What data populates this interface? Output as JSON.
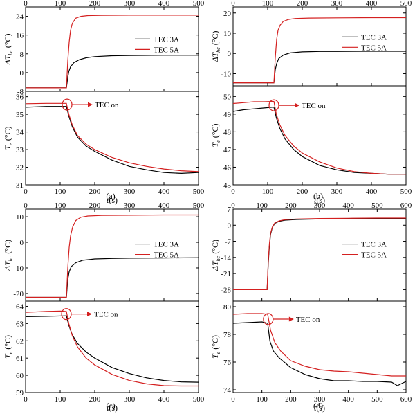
{
  "chart_data": [
    {
      "type": "line",
      "caption": "(a)",
      "x_range": [
        0,
        500
      ],
      "top": {
        "ylabel": "ΔT_hc (°C)",
        "ylim": [
          -8,
          28
        ],
        "yticks": [
          -8,
          0,
          8,
          16,
          24
        ],
        "ytick_labels": [
          "-8",
          "0",
          "8",
          "16",
          "24"
        ],
        "legend_loc": "right",
        "series": [
          {
            "name": "TEC 3A",
            "color": "#000000",
            "x": [
              0,
              118,
              122,
              125,
              130,
              140,
              155,
              175,
              200,
              250,
              300,
              400,
              500
            ],
            "y": [
              -6.5,
              -6.5,
              -2,
              0.5,
              2.5,
              4.3,
              5.5,
              6.3,
              6.8,
              7.2,
              7.3,
              7.4,
              7.4
            ]
          },
          {
            "name": "TEC 5A",
            "color": "#d42020",
            "x": [
              0,
              118,
              122,
              126,
              130,
              135,
              145,
              160,
              180,
              220,
              300,
              400,
              500
            ],
            "y": [
              -6.5,
              -6.5,
              5,
              13,
              18,
              21,
              23.2,
              24,
              24.3,
              24.4,
              24.5,
              24.5,
              24.5
            ]
          }
        ]
      },
      "bottom": {
        "ylabel": "T_e (°C)",
        "ylim": [
          31,
          36.3
        ],
        "yticks": [
          31,
          32,
          33,
          34,
          35,
          36
        ],
        "ytick_labels": [
          "31",
          "32",
          "33",
          "34",
          "35",
          "36"
        ],
        "xlabel": "t(s)",
        "xticks": [
          0,
          100,
          200,
          300,
          400,
          500
        ],
        "xtick_labels": [
          "0",
          "100",
          "200",
          "300",
          "400",
          "500"
        ],
        "annotation": {
          "text": "TEC on",
          "x": 120,
          "y": 35.55
        },
        "series": [
          {
            "name": "TEC 3A",
            "color": "#000000",
            "x": [
              0,
              60,
              118,
              125,
              135,
              150,
              175,
              200,
              250,
              300,
              350,
              400,
              450,
              500
            ],
            "y": [
              35.4,
              35.45,
              35.45,
              34.9,
              34.3,
              33.7,
              33.2,
              32.9,
              32.4,
              32.05,
              31.85,
              31.7,
              31.65,
              31.7
            ]
          },
          {
            "name": "TEC 5A",
            "color": "#d42020",
            "x": [
              0,
              60,
              118,
              125,
              135,
              150,
              175,
              200,
              250,
              300,
              350,
              400,
              450,
              500
            ],
            "y": [
              35.6,
              35.62,
              35.62,
              35.0,
              34.4,
              33.8,
              33.3,
              33.0,
              32.55,
              32.25,
              32.05,
              31.9,
              31.8,
              31.75
            ]
          }
        ]
      }
    },
    {
      "type": "line",
      "caption": "(b)",
      "x_range": [
        0,
        500
      ],
      "top": {
        "ylabel": "ΔT_hc (°C)",
        "ylim": [
          -16,
          23
        ],
        "yticks": [
          -10,
          0,
          10,
          20
        ],
        "ytick_labels": [
          "-10",
          "0",
          "10",
          "20"
        ],
        "legend_loc": "right",
        "series": [
          {
            "name": "TEC 3A",
            "color": "#000000",
            "x": [
              0,
              118,
              122,
              126,
              132,
              145,
              165,
              200,
              250,
              300,
              400,
              500
            ],
            "y": [
              -14.5,
              -14.5,
              -8,
              -5,
              -2.5,
              -0.8,
              0.3,
              0.8,
              1.0,
              1.0,
              1.1,
              1.1
            ]
          },
          {
            "name": "TEC 5A",
            "color": "#d42020",
            "x": [
              0,
              118,
              122,
              126,
              130,
              136,
              145,
              160,
              180,
              220,
              300,
              400,
              500
            ],
            "y": [
              -14.5,
              -14.5,
              -2,
              7,
              11.5,
              14,
              15.8,
              16.8,
              17.3,
              17.5,
              17.6,
              17.7,
              17.7
            ]
          }
        ]
      },
      "bottom": {
        "ylabel": "T_e (°C)",
        "ylim": [
          45,
          50.6
        ],
        "yticks": [
          45,
          46,
          47,
          48,
          49,
          50
        ],
        "ytick_labels": [
          "45",
          "46",
          "47",
          "48",
          "49",
          "50"
        ],
        "xlabel": "t(s)",
        "xticks": [
          0,
          100,
          200,
          300,
          400,
          500
        ],
        "xtick_labels": [
          "0",
          "100",
          "200",
          "300",
          "400",
          "500"
        ],
        "annotation": {
          "text": "TEC on",
          "x": 118,
          "y": 49.5
        },
        "series": [
          {
            "name": "TEC 3A",
            "color": "#000000",
            "x": [
              0,
              30,
              60,
              90,
              118,
              125,
              135,
              150,
              175,
              200,
              250,
              300,
              350,
              400,
              450,
              500
            ],
            "y": [
              49.15,
              49.25,
              49.3,
              49.35,
              49.4,
              48.8,
              48.2,
              47.6,
              47.0,
              46.6,
              46.1,
              45.85,
              45.7,
              45.65,
              45.6,
              45.6
            ]
          },
          {
            "name": "TEC 5A",
            "color": "#d42020",
            "x": [
              0,
              30,
              60,
              90,
              118,
              125,
              135,
              150,
              175,
              200,
              250,
              300,
              350,
              400,
              450,
              500
            ],
            "y": [
              49.6,
              49.65,
              49.7,
              49.7,
              49.72,
              49.0,
              48.4,
              47.8,
              47.2,
              46.8,
              46.3,
              45.95,
              45.75,
              45.65,
              45.6,
              45.6
            ]
          }
        ]
      }
    },
    {
      "type": "line",
      "caption": "(c)",
      "x_range": [
        0,
        500
      ],
      "top": {
        "ylabel": "ΔT_hc (°C)",
        "ylim": [
          -23,
          13
        ],
        "yticks": [
          -20,
          -10,
          0,
          10
        ],
        "ytick_labels": [
          "-20",
          "-10",
          "0",
          "10"
        ],
        "legend_loc": "right",
        "series": [
          {
            "name": "TEC 3A",
            "color": "#000000",
            "x": [
              0,
              118,
              122,
              126,
              132,
              145,
              165,
              200,
              250,
              300,
              400,
              500
            ],
            "y": [
              -21.5,
              -21.5,
              -14.5,
              -11.5,
              -9.5,
              -8,
              -7,
              -6.5,
              -6.3,
              -6.2,
              -6.1,
              -6.0
            ]
          },
          {
            "name": "TEC 5A",
            "color": "#d42020",
            "x": [
              0,
              118,
              122,
              126,
              130,
              136,
              145,
              160,
              180,
              220,
              300,
              400,
              500
            ],
            "y": [
              -21.5,
              -21.5,
              -10,
              -2,
              2.5,
              6,
              8.5,
              9.8,
              10.3,
              10.5,
              10.6,
              10.7,
              10.7
            ]
          }
        ]
      },
      "bottom": {
        "ylabel": "T_e (°C)",
        "ylim": [
          59,
          64.3
        ],
        "yticks": [
          59,
          60,
          61,
          62,
          63,
          64
        ],
        "ytick_labels": [
          "59",
          "60",
          "61",
          "62",
          "63",
          "64"
        ],
        "xlabel": "t(s)",
        "xticks": [
          0,
          100,
          200,
          300,
          400,
          500
        ],
        "xtick_labels": [
          "0",
          "100",
          "200",
          "300",
          "400",
          "500"
        ],
        "annotation": {
          "text": "TEC on",
          "x": 118,
          "y": 63.55
        },
        "series": [
          {
            "name": "TEC 3A",
            "color": "#000000",
            "x": [
              0,
              60,
              118,
              125,
              135,
              150,
              175,
              200,
              250,
              300,
              350,
              400,
              450,
              500
            ],
            "y": [
              63.4,
              63.42,
              63.45,
              62.9,
              62.35,
              61.85,
              61.35,
              61.0,
              60.45,
              60.1,
              59.85,
              59.7,
              59.62,
              59.6
            ]
          },
          {
            "name": "TEC 5A",
            "color": "#d42020",
            "x": [
              0,
              60,
              100,
              118,
              125,
              135,
              150,
              175,
              200,
              250,
              300,
              350,
              400,
              450,
              500
            ],
            "y": [
              63.65,
              63.7,
              63.72,
              63.7,
              63.0,
              62.3,
              61.65,
              61.0,
              60.6,
              60.05,
              59.7,
              59.5,
              59.4,
              59.38,
              59.38
            ]
          }
        ]
      }
    },
    {
      "type": "line",
      "caption": "(d)",
      "x_range": [
        0,
        600
      ],
      "top": {
        "ylabel": "ΔT_hc (°C)",
        "ylim": [
          -33,
          7
        ],
        "yticks": [
          -28,
          -21,
          -14,
          -7,
          0,
          7
        ],
        "ytick_labels": [
          "-28",
          "-21",
          "-14",
          "-7",
          "0",
          "7"
        ],
        "legend_loc": "right",
        "series": [
          {
            "name": "TEC 3A",
            "color": "#000000",
            "x": [
              0,
              118,
              122,
              126,
              130,
              136,
              145,
              160,
              180,
              220,
              300,
              400,
              500,
              600
            ],
            "y": [
              -28,
              -28,
              -17,
              -9,
              -4,
              -1,
              0.8,
              1.7,
              2.2,
              2.5,
              2.7,
              2.8,
              2.9,
              2.9
            ]
          },
          {
            "name": "TEC 5A",
            "color": "#d42020",
            "x": [
              0,
              118,
              122,
              126,
              130,
              136,
              145,
              160,
              180,
              220,
              300,
              400,
              500,
              600
            ],
            "y": [
              -28,
              -28,
              -16,
              -8,
              -3.5,
              -0.8,
              1.0,
              1.9,
              2.4,
              2.7,
              2.9,
              3.0,
              3.1,
              3.1
            ]
          }
        ]
      },
      "bottom": {
        "ylabel": "T_e (°C)",
        "ylim": [
          73.8,
          80.4
        ],
        "yticks": [
          74,
          76,
          78,
          80
        ],
        "ytick_labels": [
          "74",
          "76",
          "78",
          "80"
        ],
        "xlabel": "t(s)",
        "xticks": [
          0,
          100,
          200,
          300,
          400,
          500,
          600
        ],
        "xtick_labels": [
          "0",
          "100",
          "200",
          "300",
          "400",
          "500",
          "600"
        ],
        "annotation": {
          "text": "TEC on",
          "x": 122,
          "y": 79.1
        },
        "series": [
          {
            "name": "TEC 3A",
            "color": "#000000",
            "x": [
              0,
              50,
              100,
              120,
              128,
              140,
              160,
              200,
              250,
              300,
              350,
              400,
              450,
              500,
              550,
              570,
              600
            ],
            "y": [
              78.8,
              78.85,
              78.9,
              78.8,
              77.5,
              76.8,
              76.3,
              75.6,
              75.1,
              74.8,
              74.65,
              74.65,
              74.6,
              74.6,
              74.55,
              74.3,
              74.6
            ]
          },
          {
            "name": "TEC 5A",
            "color": "#d42020",
            "x": [
              0,
              50,
              100,
              120,
              130,
              145,
              165,
              200,
              250,
              300,
              350,
              400,
              450,
              500,
              550,
              600
            ],
            "y": [
              79.45,
              79.5,
              79.5,
              79.45,
              78.3,
              77.4,
              76.8,
              76.1,
              75.7,
              75.45,
              75.35,
              75.3,
              75.2,
              75.1,
              75.0,
              75.0
            ]
          }
        ]
      }
    }
  ]
}
